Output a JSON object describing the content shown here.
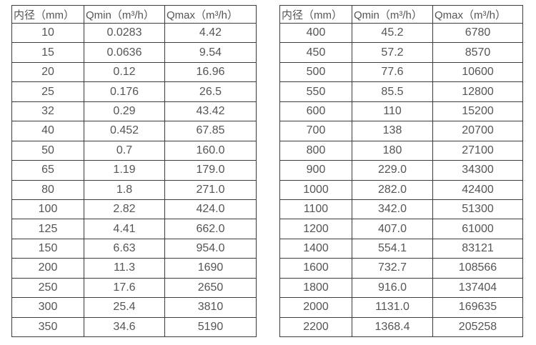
{
  "colors": {
    "background": "#ffffff",
    "grid_border": "#3b3b3b",
    "text": "#555555"
  },
  "chart_data": [
    {
      "type": "table",
      "name": "flow-table-small-diameters",
      "columns": [
        "内径（mm）",
        "Qmin（m³/h）",
        "Qmax（m³/h）"
      ],
      "rows": [
        [
          "10",
          "0.0283",
          "4.42"
        ],
        [
          "15",
          "0.0636",
          "9.54"
        ],
        [
          "20",
          "0.12",
          "16.96"
        ],
        [
          "25",
          "0.176",
          "26.5"
        ],
        [
          "32",
          "0.29",
          "43.42"
        ],
        [
          "40",
          "0.452",
          "67.85"
        ],
        [
          "50",
          "0.7",
          "160.0"
        ],
        [
          "65",
          "1.19",
          "179.0"
        ],
        [
          "80",
          "1.8",
          "271.0"
        ],
        [
          "100",
          "2.82",
          "424.0"
        ],
        [
          "125",
          "4.41",
          "662.0"
        ],
        [
          "150",
          "6.63",
          "954.0"
        ],
        [
          "200",
          "11.3",
          "1690"
        ],
        [
          "250",
          "17.6",
          "2650"
        ],
        [
          "300",
          "25.4",
          "3810"
        ],
        [
          "350",
          "34.6",
          "5190"
        ]
      ]
    },
    {
      "type": "table",
      "name": "flow-table-large-diameters",
      "columns": [
        "内径（mm）",
        "Qmin（m³/h）",
        "Qmax（m³/h）"
      ],
      "rows": [
        [
          "400",
          "45.2",
          "6780"
        ],
        [
          "450",
          "57.2",
          "8570"
        ],
        [
          "500",
          "77.6",
          "10600"
        ],
        [
          "550",
          "85.5",
          "12800"
        ],
        [
          "600",
          "110",
          "15200"
        ],
        [
          "700",
          "138",
          "20700"
        ],
        [
          "800",
          "180",
          "27100"
        ],
        [
          "900",
          "229.0",
          "34300"
        ],
        [
          "1000",
          "282.0",
          "42400"
        ],
        [
          "1100",
          "342.0",
          "51300"
        ],
        [
          "1200",
          "407.0",
          "61000"
        ],
        [
          "1400",
          "554.1",
          "83121"
        ],
        [
          "1600",
          "732.7",
          "108566"
        ],
        [
          "1800",
          "916.0",
          "137404"
        ],
        [
          "2000",
          "1131.0",
          "169635"
        ],
        [
          "2200",
          "1368.4",
          "205258"
        ]
      ]
    }
  ]
}
